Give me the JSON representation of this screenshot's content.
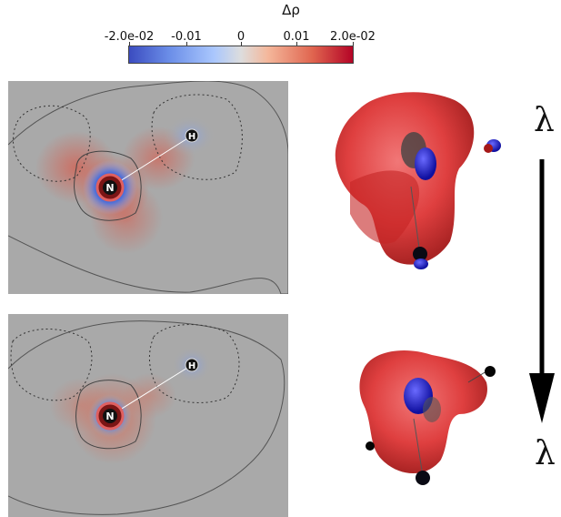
{
  "colorbar": {
    "title": "Δρ",
    "ticks": [
      "-2.0e-02",
      "-0.01",
      "0",
      "0.01",
      "2.0e-02"
    ],
    "colors": [
      "#3b4cc0",
      "#aac7fd",
      "#dddddd",
      "#f4b79b",
      "#b40426"
    ]
  },
  "panels": {
    "top": {
      "atom_n": "N",
      "atom_h": "H"
    },
    "bottom": {
      "atom_n": "N",
      "atom_h": "H"
    }
  },
  "lambda_top": "λ",
  "lambda_bottom": "λ",
  "icons": {
    "arrow": "down-arrow-icon"
  }
}
